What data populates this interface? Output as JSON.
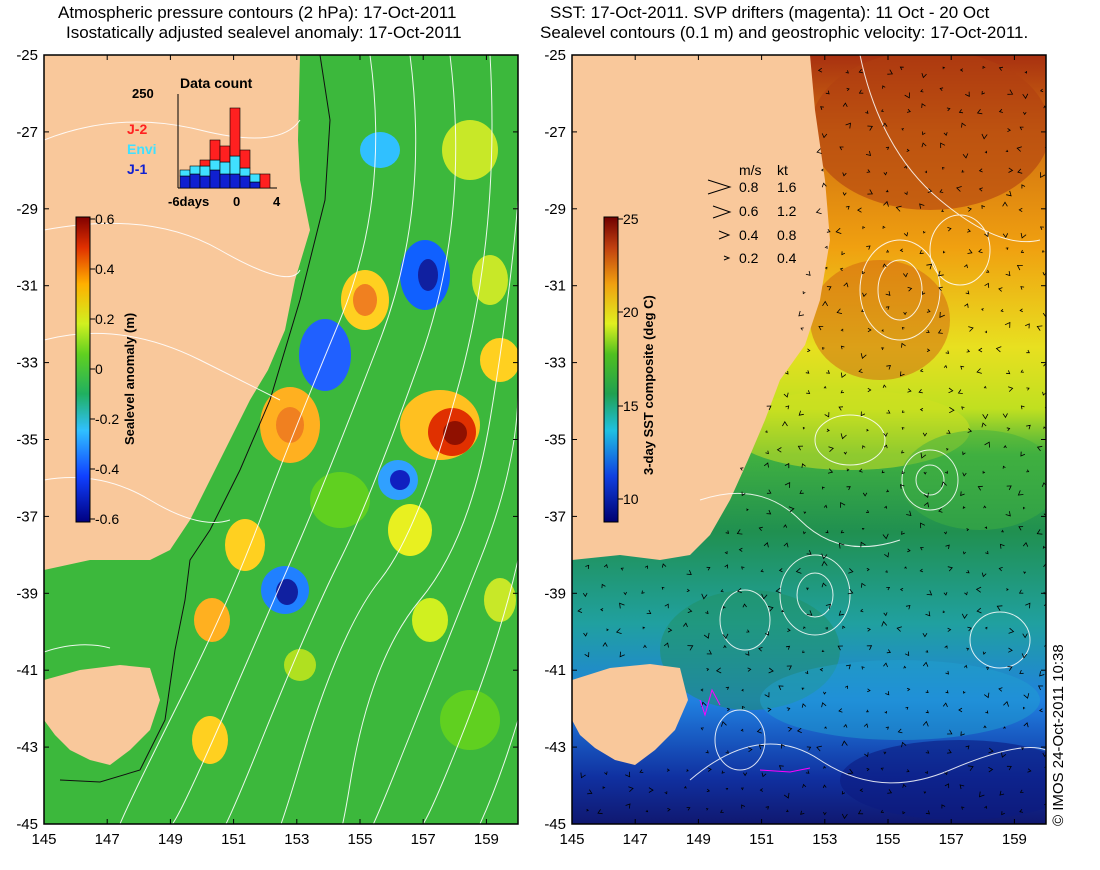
{
  "left_panel": {
    "title_line1": "Atmospheric pressure contours (2 hPa): 17-Oct-2011",
    "title_line2": "Isostatically adjusted sealevel anomaly: 17-Oct-2011",
    "colorbar": {
      "label": "Sealevel anomaly (m)",
      "ticks": [
        "0.6",
        "0.4",
        "0.2",
        "0",
        "-0.2",
        "-0.4",
        "-0.6"
      ]
    },
    "data_count": {
      "title": "Data count",
      "ymax_label": "250",
      "x_ticks": [
        "-6days",
        "0",
        "4"
      ],
      "legend": [
        {
          "label": "J-2",
          "color": "#ff2020"
        },
        {
          "label": "Envi",
          "color": "#40e0ff"
        },
        {
          "label": "J-1",
          "color": "#1020d0"
        }
      ]
    }
  },
  "right_panel": {
    "title_line1": "SST: 17-Oct-2011. SVP drifters (magenta): 11 Oct - 20 Oct",
    "title_line2": "Sealevel contours (0.1 m) and geostrophic velocity: 17-Oct-2011.",
    "colorbar": {
      "label": "3-day SST composite (deg C)",
      "ticks": [
        "25",
        "20",
        "15",
        "10"
      ]
    },
    "velocity_key": {
      "header_ms": "m/s",
      "header_kt": "kt",
      "rows": [
        {
          "ms": "0.8",
          "kt": "1.6"
        },
        {
          "ms": "0.6",
          "kt": "1.2"
        },
        {
          "ms": "0.4",
          "kt": "0.8"
        },
        {
          "ms": "0.2",
          "kt": "0.4"
        }
      ]
    }
  },
  "axes": {
    "lat_labels": [
      "-25",
      "-27",
      "-29",
      "-31",
      "-33",
      "-35",
      "-37",
      "-39",
      "-41",
      "-43",
      "-45"
    ],
    "lon_labels": [
      "145",
      "147",
      "149",
      "151",
      "153",
      "155",
      "157",
      "159"
    ]
  },
  "credit": "© IMOS 24-Oct-2011 10:38",
  "colors": {
    "land": "#f9c89b",
    "ocean_green": "#3cb83c",
    "contour": "#ffffff"
  }
}
